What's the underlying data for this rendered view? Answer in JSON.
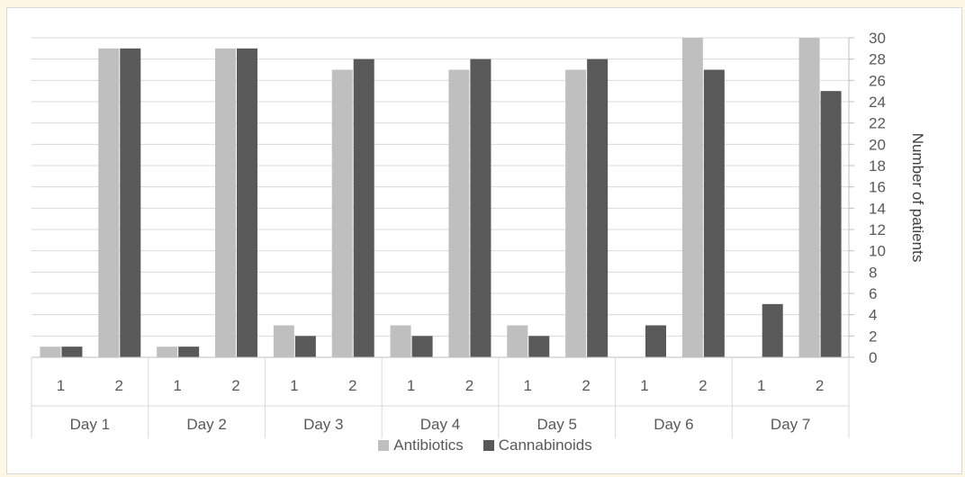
{
  "chart_data": {
    "type": "bar",
    "ylabel": "Number of patients",
    "ylim": [
      0,
      30
    ],
    "y_ticks": [
      "0",
      "2",
      "4",
      "6",
      "8",
      "10",
      "12",
      "14",
      "16",
      "18",
      "20",
      "22",
      "24",
      "26",
      "28",
      "30"
    ],
    "y_axis_position": "right",
    "grid": true,
    "legend_position": "bottom",
    "groups": [
      "Day 1",
      "Day 2",
      "Day 3",
      "Day 4",
      "Day 5",
      "Day 6",
      "Day 7"
    ],
    "subcategories": [
      "1",
      "2"
    ],
    "categories": [
      "Day 1 - 1",
      "Day 1 - 2",
      "Day 2 - 1",
      "Day 2 - 2",
      "Day 3 - 1",
      "Day 3 - 2",
      "Day 4 - 1",
      "Day 4 - 2",
      "Day 5 - 1",
      "Day 5 - 2",
      "Day 6 - 1",
      "Day 6 - 2",
      "Day 7 - 1",
      "Day 7 - 2"
    ],
    "series": [
      {
        "name": "Antibiotics",
        "color": "#bfbfbf",
        "values": [
          1,
          29,
          1,
          29,
          3,
          27,
          3,
          27,
          3,
          27,
          0,
          30,
          0,
          30
        ]
      },
      {
        "name": "Cannabinoids",
        "color": "#595959",
        "values": [
          1,
          29,
          1,
          29,
          2,
          28,
          2,
          28,
          2,
          28,
          3,
          27,
          5,
          25
        ]
      }
    ]
  }
}
